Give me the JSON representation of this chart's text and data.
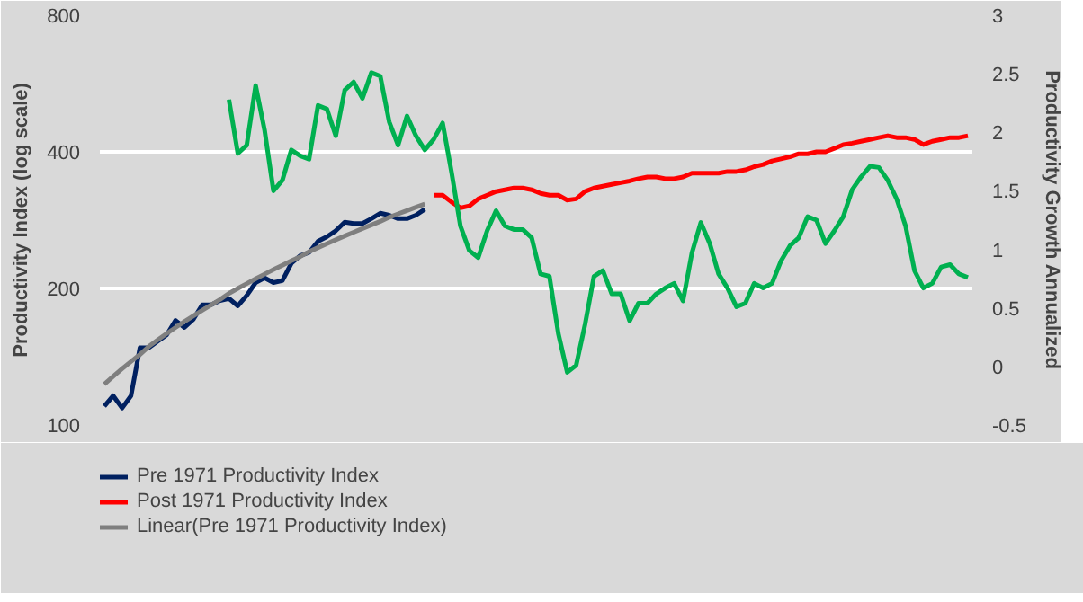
{
  "chart_data": {
    "type": "line",
    "ylabel": "Productivity Index (log scale)",
    "y2label": "Productivity Growth Annualized",
    "categories": [
      null,
      null,
      null,
      null,
      null,
      null,
      null,
      null,
      null,
      null,
      null,
      null,
      null,
      null,
      null,
      null,
      null,
      null,
      null,
      null,
      null,
      null,
      null,
      null,
      null,
      null,
      null,
      null,
      null,
      null,
      null,
      null,
      null,
      null,
      null,
      null,
      null,
      null,
      null,
      null,
      null,
      null,
      null,
      null,
      null,
      null,
      null,
      null,
      null,
      null,
      null,
      null,
      null,
      null,
      null,
      null,
      null,
      null,
      null,
      null,
      null,
      null,
      null,
      null,
      null,
      null,
      null,
      null,
      null,
      null,
      null,
      null,
      null,
      null,
      null,
      null,
      null,
      null,
      null,
      null,
      null,
      null,
      null,
      null,
      null,
      null,
      null,
      null,
      null,
      null,
      null,
      null,
      null,
      null,
      null,
      null,
      null,
      null
    ],
    "log": true,
    "ylim": [
      100,
      800
    ],
    "yticks": [
      100,
      200,
      400,
      800
    ],
    "y2lim": [
      -0.5,
      3
    ],
    "y2ticks": [
      -0.5,
      0,
      0.5,
      1,
      1.5,
      2,
      2.5,
      3
    ],
    "grid": "y",
    "legend": "bottom",
    "series": [
      {
        "name": "Pre 1971 Productivity Index",
        "color": "#002060",
        "values": [
          110,
          116,
          109,
          116,
          148,
          148,
          153,
          158,
          170,
          164,
          171,
          184,
          184,
          188,
          190,
          183,
          193,
          206,
          211,
          206,
          208,
          227,
          236,
          240,
          254,
          260,
          268,
          280,
          278,
          278,
          285,
          293,
          290,
          285,
          285,
          290,
          299,
          null,
          null,
          null,
          null,
          null,
          null,
          null,
          null,
          null,
          null,
          null,
          null,
          null,
          null,
          null,
          null,
          null,
          null,
          null,
          null,
          null,
          null,
          null,
          null,
          null,
          null,
          null,
          null,
          null,
          null,
          null,
          null,
          null,
          null,
          null,
          null,
          null,
          null,
          null,
          null,
          null,
          null,
          null,
          null,
          null,
          null,
          null,
          null,
          null,
          null,
          null,
          null,
          null,
          null,
          null,
          null,
          null,
          null,
          null,
          null,
          null
        ]
      },
      {
        "name": "Post 1971 Productivity Index",
        "color": "#ff0000",
        "values": [
          null,
          null,
          null,
          null,
          null,
          null,
          null,
          null,
          null,
          null,
          null,
          null,
          null,
          null,
          null,
          null,
          null,
          null,
          null,
          null,
          null,
          null,
          null,
          null,
          null,
          null,
          null,
          null,
          null,
          null,
          null,
          null,
          null,
          null,
          null,
          null,
          null,
          321,
          321,
          310,
          301,
          304,
          315,
          321,
          327,
          330,
          333,
          333,
          330,
          324,
          321,
          321,
          313,
          315,
          327,
          333,
          336,
          339,
          342,
          345,
          349,
          352,
          352,
          349,
          349,
          352,
          359,
          359,
          359,
          359,
          362,
          362,
          365,
          371,
          375,
          382,
          386,
          390,
          396,
          396,
          400,
          400,
          407,
          415,
          418,
          422,
          426,
          430,
          434,
          430,
          430,
          426,
          415,
          422,
          426,
          430,
          430,
          434
        ]
      },
      {
        "name": "Linear(Pre 1971 Productivity Index)",
        "color": "#7f7f7f",
        "values": [
          123,
          128,
          133,
          138,
          143,
          149,
          154,
          159,
          164,
          169,
          174,
          179,
          184,
          189,
          195,
          200,
          205,
          210,
          215,
          220,
          225,
          230,
          235,
          241,
          246,
          251,
          256,
          261,
          266,
          271,
          276,
          281,
          287,
          292,
          297,
          302,
          307,
          null,
          null,
          null,
          null,
          null,
          null,
          null,
          null,
          null,
          null,
          null,
          null,
          null,
          null,
          null,
          null,
          null,
          null,
          null,
          null,
          null,
          null,
          null,
          null,
          null,
          null,
          null,
          null,
          null,
          null,
          null,
          null,
          null,
          null,
          null,
          null,
          null,
          null,
          null,
          null,
          null,
          null,
          null,
          null,
          null,
          null,
          null,
          null,
          null,
          null,
          null,
          null,
          null,
          null,
          null,
          null,
          null,
          null,
          null,
          null,
          null
        ]
      },
      {
        "color": "#00b050",
        "axis": "y2",
        "values": [
          null,
          null,
          null,
          null,
          null,
          null,
          null,
          null,
          null,
          null,
          null,
          null,
          null,
          null,
          2.28,
          1.82,
          1.89,
          2.4,
          2.02,
          1.5,
          1.59,
          1.85,
          1.8,
          1.77,
          2.23,
          2.2,
          1.97,
          2.36,
          2.43,
          2.29,
          2.51,
          2.48,
          2.09,
          1.89,
          2.14,
          1.97,
          1.85,
          1.94,
          2.08,
          1.66,
          1.2,
          0.99,
          0.93,
          1.16,
          1.33,
          1.2,
          1.17,
          1.17,
          1.1,
          0.79,
          0.77,
          0.28,
          -0.05,
          0.01,
          0.36,
          0.77,
          0.82,
          0.62,
          0.62,
          0.39,
          0.54,
          0.54,
          0.62,
          0.67,
          0.71,
          0.56,
          0.97,
          1.23,
          1.05,
          0.79,
          0.67,
          0.51,
          0.54,
          0.71,
          0.67,
          0.71,
          0.9,
          1.03,
          1.1,
          1.28,
          1.25,
          1.05,
          1.16,
          1.28,
          1.51,
          1.62,
          1.71,
          1.7,
          1.59,
          1.43,
          1.2,
          0.82,
          0.67,
          0.71,
          0.85,
          0.87,
          0.79,
          0.76
        ]
      }
    ]
  }
}
